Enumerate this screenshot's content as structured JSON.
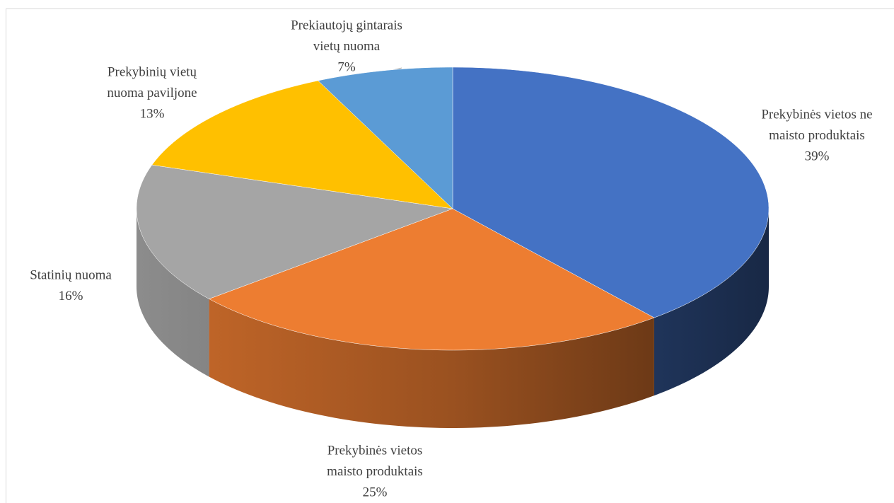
{
  "chart_data": {
    "type": "pie3d",
    "categories": [
      [
        "Prekybinės vietos ne",
        "maisto produktais"
      ],
      [
        "Prekybinės vietos",
        "maisto produktais"
      ],
      [
        "Statinių nuoma"
      ],
      [
        "Prekybinių vietų",
        "nuoma paviljone"
      ],
      [
        "Prekiautojų gintarais",
        "vietų nuoma"
      ]
    ],
    "values": [
      39,
      25,
      16,
      13,
      7
    ],
    "value_labels": [
      "39%",
      "25%",
      "16%",
      "13%",
      "7%"
    ],
    "colors": [
      "#4472c4",
      "#ed7d31",
      "#a5a5a5",
      "#ffc000",
      "#5b9bd5"
    ]
  }
}
